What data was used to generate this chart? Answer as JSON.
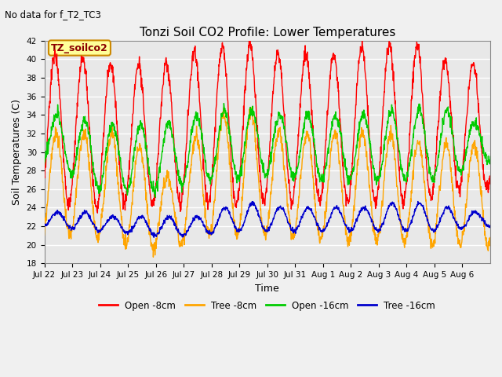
{
  "title": "Tonzi Soil CO2 Profile: Lower Temperatures",
  "subtitle": "No data for f_T2_TC3",
  "ylabel": "Soil Temperatures (C)",
  "xlabel": "Time",
  "ylim": [
    18,
    42
  ],
  "yticks": [
    18,
    20,
    22,
    24,
    26,
    28,
    30,
    32,
    34,
    36,
    38,
    40,
    42
  ],
  "fig_bg": "#f0f0f0",
  "plot_bg": "#e8e8e8",
  "legend_label": "TZ_soilco2",
  "series_colors": {
    "open_8cm": "#ff0000",
    "tree_8cm": "#ffa500",
    "open_16cm": "#00cc00",
    "tree_16cm": "#0000cd"
  },
  "legend_entries": [
    "Open -8cm",
    "Tree -8cm",
    "Open -16cm",
    "Tree -16cm"
  ],
  "legend_colors": [
    "#ff0000",
    "#ffa500",
    "#00cc00",
    "#0000cd"
  ],
  "x_tick_labels": [
    "Jul 22",
    "Jul 23",
    "Jul 24",
    "Jul 25",
    "Jul 26",
    "Jul 27",
    "Jul 28",
    "Jul 29",
    "Jul 30",
    "Jul 31",
    "Aug 1",
    "Aug 2",
    "Aug 3",
    "Aug 4",
    "Aug 5",
    "Aug 6"
  ],
  "n_days": 16,
  "open_8cm_peaks": [
    40.5,
    40.0,
    39.5,
    39.5,
    39.5,
    41.0,
    41.5,
    41.5,
    40.5,
    40.5,
    40.5,
    41.5,
    41.5,
    41.5,
    39.5,
    39.5
  ],
  "open_8cm_troughs": [
    24.5,
    24.0,
    24.5,
    24.5,
    24.5,
    24.5,
    24.5,
    24.5,
    25.0,
    24.5,
    24.5,
    24.5,
    24.5,
    24.5,
    26.0,
    26.0
  ],
  "tree_8cm_peaks": [
    32.0,
    32.0,
    32.0,
    30.5,
    27.0,
    32.0,
    34.5,
    34.5,
    32.0,
    32.0,
    32.0,
    32.0,
    32.0,
    31.0,
    31.0,
    31.0
  ],
  "tree_8cm_troughs": [
    21.0,
    21.0,
    20.5,
    19.5,
    19.5,
    21.0,
    21.0,
    21.0,
    21.0,
    20.5,
    20.5,
    20.5,
    20.5,
    20.0,
    20.0,
    20.0
  ],
  "open_16cm_peaks": [
    34.0,
    33.5,
    33.0,
    33.0,
    33.0,
    34.0,
    34.5,
    34.5,
    34.0,
    34.0,
    34.0,
    34.0,
    34.5,
    34.5,
    34.5,
    33.0
  ],
  "open_16cm_troughs": [
    29.0,
    26.0,
    26.0,
    25.5,
    26.0,
    27.0,
    27.0,
    27.5,
    27.5,
    27.0,
    27.0,
    27.0,
    27.0,
    27.0,
    27.0,
    29.0
  ],
  "tree_16cm_peaks": [
    23.5,
    23.5,
    23.0,
    23.0,
    23.0,
    23.0,
    24.0,
    24.5,
    24.0,
    24.0,
    24.0,
    24.0,
    24.5,
    24.5,
    24.0,
    23.5
  ],
  "tree_16cm_troughs": [
    22.0,
    21.5,
    21.5,
    21.0,
    21.0,
    21.0,
    21.5,
    21.5,
    21.5,
    21.5,
    21.5,
    21.5,
    21.5,
    21.5,
    21.5,
    22.0
  ],
  "open_8cm_peak_phase": 0.38,
  "tree_8cm_peak_phase": 0.42,
  "open_16cm_peak_phase": 0.45,
  "tree_16cm_peak_phase": 0.47
}
